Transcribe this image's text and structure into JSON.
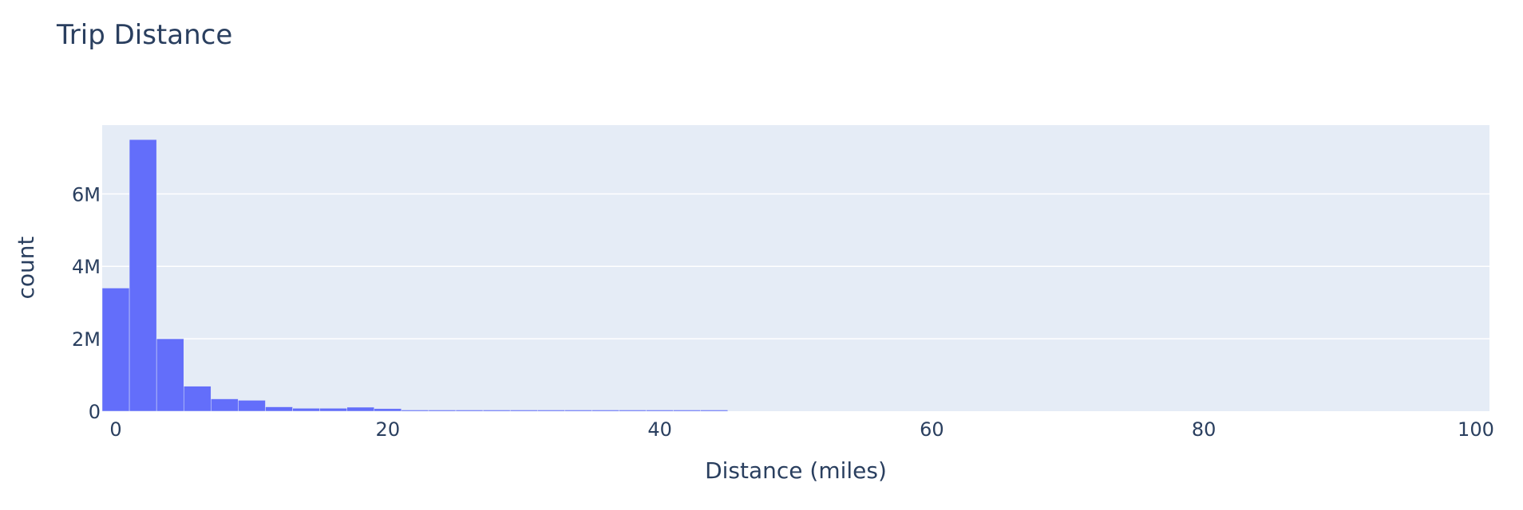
{
  "chart_data": {
    "type": "bar",
    "title": "Trip Distance",
    "xlabel": "Distance (miles)",
    "ylabel": "count",
    "xlim": [
      -1,
      101
    ],
    "ylim": [
      0,
      7900000
    ],
    "x_ticks": [
      0,
      20,
      40,
      60,
      80,
      100
    ],
    "x_tick_labels": [
      "0",
      "20",
      "40",
      "60",
      "80",
      "100"
    ],
    "y_ticks": [
      0,
      2000000,
      4000000,
      6000000
    ],
    "y_tick_labels": [
      "0",
      "2M",
      "4M",
      "6M"
    ],
    "bin_width": 2,
    "grid": true,
    "legend": false,
    "colors": {
      "bar": "#636efa",
      "plot_background": "#e5ecf6",
      "grid": "#ffffff",
      "text": "#2a3f5f"
    },
    "bins": [
      {
        "x0": -1,
        "x1": 1,
        "count": 3400000
      },
      {
        "x0": 1,
        "x1": 3,
        "count": 7500000
      },
      {
        "x0": 3,
        "x1": 5,
        "count": 2000000
      },
      {
        "x0": 5,
        "x1": 7,
        "count": 690000
      },
      {
        "x0": 7,
        "x1": 9,
        "count": 340000
      },
      {
        "x0": 9,
        "x1": 11,
        "count": 300000
      },
      {
        "x0": 11,
        "x1": 13,
        "count": 120000
      },
      {
        "x0": 13,
        "x1": 15,
        "count": 80000
      },
      {
        "x0": 15,
        "x1": 17,
        "count": 80000
      },
      {
        "x0": 17,
        "x1": 19,
        "count": 110000
      },
      {
        "x0": 19,
        "x1": 21,
        "count": 70000
      },
      {
        "x0": 21,
        "x1": 23,
        "count": 25000
      },
      {
        "x0": 23,
        "x1": 25,
        "count": 18000
      },
      {
        "x0": 25,
        "x1": 27,
        "count": 14000
      },
      {
        "x0": 27,
        "x1": 29,
        "count": 11000
      },
      {
        "x0": 29,
        "x1": 31,
        "count": 9000
      },
      {
        "x0": 31,
        "x1": 33,
        "count": 7000
      },
      {
        "x0": 33,
        "x1": 35,
        "count": 6000
      },
      {
        "x0": 35,
        "x1": 37,
        "count": 5000
      },
      {
        "x0": 37,
        "x1": 39,
        "count": 4500
      },
      {
        "x0": 39,
        "x1": 41,
        "count": 4000
      },
      {
        "x0": 41,
        "x1": 43,
        "count": 3500
      },
      {
        "x0": 43,
        "x1": 45,
        "count": 3000
      }
    ]
  }
}
